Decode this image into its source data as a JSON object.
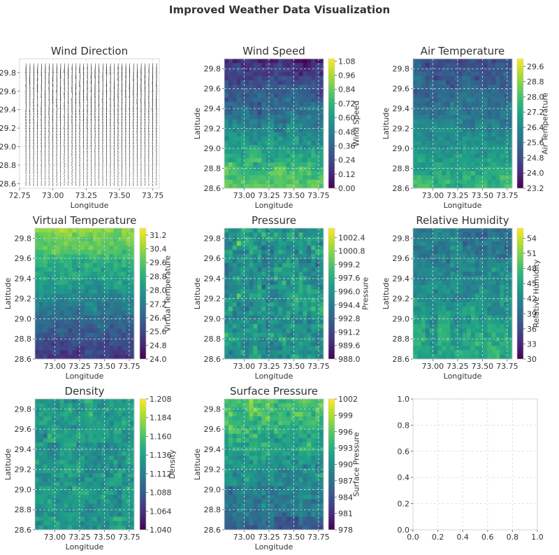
{
  "figure": {
    "title": "Improved Weather Data Visualization",
    "colormap": [
      "#440154",
      "#482878",
      "#3e4a89",
      "#31688e",
      "#26828e",
      "#1f9e89",
      "#35b779",
      "#6ece58",
      "#b5de2b",
      "#fde725"
    ]
  },
  "chart_data": [
    {
      "id": "wind-direction",
      "type": "quiver",
      "title": "Wind Direction",
      "xlabel": "Longitude",
      "ylabel": "Latitude",
      "xlim": [
        72.75,
        73.8
      ],
      "ylim": [
        28.55,
        29.95
      ],
      "xticks": [
        "72.75",
        "73.00",
        "73.25",
        "73.50",
        "73.75"
      ],
      "yticks": [
        "28.6",
        "28.8",
        "29.0",
        "29.2",
        "29.4",
        "29.6",
        "29.8"
      ],
      "grid_lon": [
        72.8,
        73.78
      ],
      "grid_lat": [
        28.6,
        29.9
      ],
      "grid_size": [
        35,
        42
      ],
      "arrow_color": "#222222"
    },
    {
      "id": "wind-speed",
      "type": "heatmap",
      "title": "Wind Speed",
      "xlabel": "Longitude",
      "ylabel": "Latitude",
      "cbar_label": "Wind Speed",
      "xlim": [
        72.8,
        73.8
      ],
      "ylim": [
        28.6,
        29.9
      ],
      "xticks": [
        "73.00",
        "73.25",
        "73.50",
        "73.75"
      ],
      "yticks": [
        "28.6",
        "28.8",
        "29.0",
        "29.2",
        "29.4",
        "29.6",
        "29.8"
      ],
      "vmin": 0.0,
      "vmax": 1.1,
      "cbar_ticks": [
        "0.00",
        "0.12",
        "0.24",
        "0.36",
        "0.48",
        "0.60",
        "0.72",
        "0.84",
        "0.96",
        "1.08"
      ],
      "field": {
        "south": 0.85,
        "north": 0.12,
        "noise": 0.13
      }
    },
    {
      "id": "air-temperature",
      "type": "heatmap",
      "title": "Air Temperature",
      "xlabel": "Longitude",
      "ylabel": "Latitude",
      "cbar_label": "Air Temperature",
      "xlim": [
        72.8,
        73.8
      ],
      "ylim": [
        28.6,
        29.9
      ],
      "xticks": [
        "73.00",
        "73.25",
        "73.50",
        "73.75"
      ],
      "yticks": [
        "28.6",
        "28.8",
        "29.0",
        "29.2",
        "29.4",
        "29.6",
        "29.8"
      ],
      "vmin": 23.2,
      "vmax": 30.0,
      "cbar_ticks": [
        "23.2",
        "24.0",
        "24.8",
        "25.6",
        "26.4",
        "27.2",
        "28.0",
        "28.8",
        "29.6"
      ],
      "field": {
        "south": 27.6,
        "north": 24.8,
        "noise": 0.7
      }
    },
    {
      "id": "virtual-temperature",
      "type": "heatmap",
      "title": "Virtual Temperature",
      "xlabel": "Longitude",
      "ylabel": "Latitude",
      "cbar_label": "Virtual Temperature",
      "xlim": [
        72.8,
        73.8
      ],
      "ylim": [
        28.6,
        29.9
      ],
      "xticks": [
        "73.00",
        "73.25",
        "73.50",
        "73.75"
      ],
      "yticks": [
        "28.6",
        "28.8",
        "29.0",
        "29.2",
        "29.4",
        "29.6",
        "29.8"
      ],
      "vmin": 24.0,
      "vmax": 31.6,
      "cbar_ticks": [
        "24.0",
        "24.8",
        "25.6",
        "26.4",
        "27.2",
        "28.0",
        "28.8",
        "29.6",
        "30.4",
        "31.2"
      ],
      "field": {
        "south": 25.2,
        "north": 30.2,
        "noise": 0.7
      }
    },
    {
      "id": "pressure",
      "type": "heatmap",
      "title": "Pressure",
      "xlabel": "Longitude",
      "ylabel": "Latitude",
      "cbar_label": "Pressure",
      "xlim": [
        72.8,
        73.8
      ],
      "ylim": [
        28.6,
        29.9
      ],
      "xticks": [
        "73.00",
        "73.25",
        "73.50",
        "73.75"
      ],
      "yticks": [
        "28.6",
        "28.8",
        "29.0",
        "29.2",
        "29.4",
        "29.6",
        "29.8"
      ],
      "vmin": 988.0,
      "vmax": 1003.5,
      "cbar_ticks": [
        "988.0",
        "989.6",
        "991.2",
        "992.8",
        "994.4",
        "996.0",
        "997.6",
        "999.2",
        "1000.8",
        "1002.4"
      ],
      "field": {
        "south": 996.0,
        "north": 996.0,
        "noise": 2.8
      }
    },
    {
      "id": "relative-humidity",
      "type": "heatmap",
      "title": "Relative Humidity",
      "xlabel": "Longitude",
      "ylabel": "Latitude",
      "cbar_label": "Relative Humidity",
      "xlim": [
        72.8,
        73.8
      ],
      "ylim": [
        28.6,
        29.9
      ],
      "xticks": [
        "73.00",
        "73.25",
        "73.50",
        "73.75"
      ],
      "yticks": [
        "28.6",
        "28.8",
        "29.0",
        "29.2",
        "29.4",
        "29.6",
        "29.8"
      ],
      "vmin": 30,
      "vmax": 56,
      "cbar_ticks": [
        "30",
        "33",
        "36",
        "39",
        "42",
        "45",
        "48",
        "51",
        "54"
      ],
      "field": {
        "south": 46,
        "north": 40,
        "noise": 3.2
      }
    },
    {
      "id": "density",
      "type": "heatmap",
      "title": "Density",
      "xlabel": "Longitude",
      "ylabel": "Latitude",
      "cbar_label": "Density",
      "xlim": [
        72.8,
        73.8
      ],
      "ylim": [
        28.6,
        29.9
      ],
      "xticks": [
        "73.00",
        "73.25",
        "73.50",
        "73.75"
      ],
      "yticks": [
        "28.6",
        "28.8",
        "29.0",
        "29.2",
        "29.4",
        "29.6",
        "29.8"
      ],
      "vmin": 1.04,
      "vmax": 1.208,
      "cbar_ticks": [
        "1.040",
        "1.064",
        "1.088",
        "1.112",
        "1.136",
        "1.160",
        "1.184",
        "1.208"
      ],
      "field": {
        "south": 1.13,
        "north": 1.13,
        "noise": 0.022
      }
    },
    {
      "id": "surface-pressure",
      "type": "heatmap",
      "title": "Surface Pressure",
      "xlabel": "Longitude",
      "ylabel": "Latitude",
      "cbar_label": "Surface Pressure",
      "xlim": [
        72.8,
        73.8
      ],
      "ylim": [
        28.6,
        29.9
      ],
      "xticks": [
        "73.00",
        "73.25",
        "73.50",
        "73.75"
      ],
      "yticks": [
        "28.6",
        "28.8",
        "29.0",
        "29.2",
        "29.4",
        "29.6",
        "29.8"
      ],
      "vmin": 978,
      "vmax": 1002,
      "cbar_ticks": [
        "978",
        "981",
        "984",
        "987",
        "990",
        "993",
        "996",
        "999",
        "1002"
      ],
      "field": {
        "south": 986,
        "north": 995,
        "noise": 3.2
      }
    },
    {
      "id": "empty-axes",
      "type": "empty",
      "title": "",
      "xlim": [
        0,
        1
      ],
      "ylim": [
        0,
        1
      ],
      "xticks": [
        "0.0",
        "0.2",
        "0.4",
        "0.6",
        "0.8",
        "1.0"
      ],
      "yticks": [
        "0.0",
        "0.2",
        "0.4",
        "0.6",
        "0.8",
        "1.0"
      ]
    }
  ]
}
